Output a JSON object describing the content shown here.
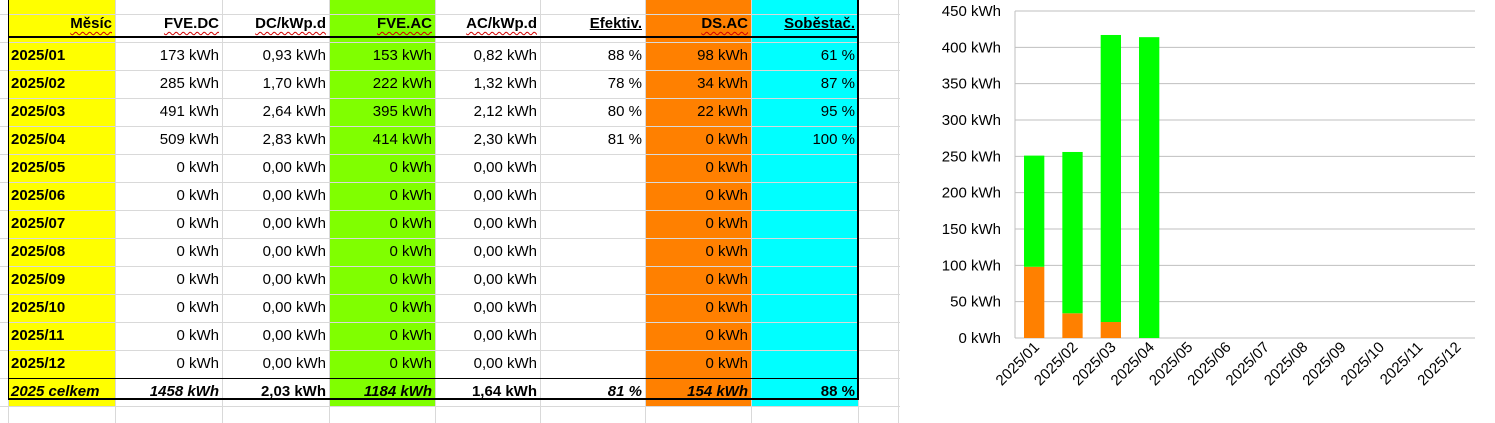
{
  "table": {
    "headers": [
      "Měsíc",
      "FVE.DC",
      "DC/kWp.d",
      "FVE.AC",
      "AC/kWp.d",
      "Efektiv.",
      "DS.AC",
      "Soběstač."
    ],
    "rows": [
      [
        "2025/01",
        "173 kWh",
        "0,93 kWh",
        "153 kWh",
        "0,82 kWh",
        "88 %",
        "98 kWh",
        "61 %"
      ],
      [
        "2025/02",
        "285 kWh",
        "1,70 kWh",
        "222 kWh",
        "1,32 kWh",
        "78 %",
        "34 kWh",
        "87 %"
      ],
      [
        "2025/03",
        "491 kWh",
        "2,64 kWh",
        "395 kWh",
        "2,12 kWh",
        "80 %",
        "22 kWh",
        "95 %"
      ],
      [
        "2025/04",
        "509 kWh",
        "2,83 kWh",
        "414 kWh",
        "2,30 kWh",
        "81 %",
        "0 kWh",
        "100 %"
      ],
      [
        "2025/05",
        "0 kWh",
        "0,00 kWh",
        "0 kWh",
        "0,00 kWh",
        "",
        "0 kWh",
        ""
      ],
      [
        "2025/06",
        "0 kWh",
        "0,00 kWh",
        "0 kWh",
        "0,00 kWh",
        "",
        "0 kWh",
        ""
      ],
      [
        "2025/07",
        "0 kWh",
        "0,00 kWh",
        "0 kWh",
        "0,00 kWh",
        "",
        "0 kWh",
        ""
      ],
      [
        "2025/08",
        "0 kWh",
        "0,00 kWh",
        "0 kWh",
        "0,00 kWh",
        "",
        "0 kWh",
        ""
      ],
      [
        "2025/09",
        "0 kWh",
        "0,00 kWh",
        "0 kWh",
        "0,00 kWh",
        "",
        "0 kWh",
        ""
      ],
      [
        "2025/10",
        "0 kWh",
        "0,00 kWh",
        "0 kWh",
        "0,00 kWh",
        "",
        "0 kWh",
        ""
      ],
      [
        "2025/11",
        "0 kWh",
        "0,00 kWh",
        "0 kWh",
        "0,00 kWh",
        "",
        "0 kWh",
        ""
      ],
      [
        "2025/12",
        "0 kWh",
        "0,00 kWh",
        "0 kWh",
        "0,00 kWh",
        "",
        "0 kWh",
        ""
      ]
    ],
    "total": [
      "2025 celkem",
      "1458 kWh",
      "2,03 kWh",
      "1184 kWh",
      "1,64 kWh",
      "81 %",
      "154 kWh",
      "88 %"
    ],
    "colors": {
      "month": "#ffff00",
      "fve_ac": "#80ff00",
      "ds_ac": "#ff8000",
      "sobestac": "#00ffff"
    }
  },
  "chart_data": {
    "type": "bar",
    "stacked": true,
    "categories": [
      "2025/01",
      "2025/02",
      "2025/03",
      "2025/04",
      "2025/05",
      "2025/06",
      "2025/07",
      "2025/08",
      "2025/09",
      "2025/10",
      "2025/11",
      "2025/12"
    ],
    "series": [
      {
        "color": "#ff8000",
        "values": [
          98,
          34,
          22,
          0,
          0,
          0,
          0,
          0,
          0,
          0,
          0,
          0
        ]
      },
      {
        "color": "#00ff00",
        "values": [
          153,
          222,
          395,
          414,
          0,
          0,
          0,
          0,
          0,
          0,
          0,
          0
        ]
      }
    ],
    "ylim": [
      0,
      450
    ],
    "yticks": [
      "0 kWh",
      "50 kWh",
      "100 kWh",
      "150 kWh",
      "200 kWh",
      "250 kWh",
      "300 kWh",
      "350 kWh",
      "400 kWh",
      "450 kWh"
    ],
    "grid": true
  }
}
